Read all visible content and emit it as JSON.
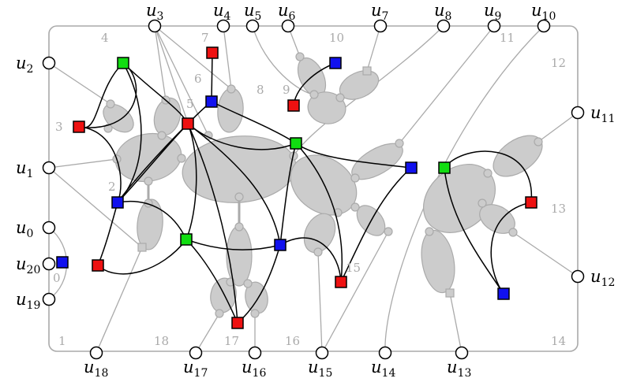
{
  "colors": {
    "frame": "#aaaaaa",
    "blob_fill": "#cccccc",
    "blob_stroke": "#aaaaaa",
    "thin_edge": "#aaaaaa",
    "curve": "#000000",
    "region_label": "#aaaaaa",
    "red": "#ee1111",
    "green": "#11dd11",
    "blue": "#1111ee",
    "gray_node": "#cccccc"
  },
  "outer_vertices": [
    {
      "name": "u_0",
      "base": "u",
      "sub": "0"
    },
    {
      "name": "u_1",
      "base": "u",
      "sub": "1"
    },
    {
      "name": "u_2",
      "base": "u",
      "sub": "2"
    },
    {
      "name": "u_3",
      "base": "u",
      "sub": "3"
    },
    {
      "name": "u_4",
      "base": "u",
      "sub": "4"
    },
    {
      "name": "u_5",
      "base": "u",
      "sub": "5"
    },
    {
      "name": "u_6",
      "base": "u",
      "sub": "6"
    },
    {
      "name": "u_7",
      "base": "u",
      "sub": "7"
    },
    {
      "name": "u_8",
      "base": "u",
      "sub": "8"
    },
    {
      "name": "u_9",
      "base": "u",
      "sub": "9"
    },
    {
      "name": "u_10",
      "base": "u",
      "sub": "10"
    },
    {
      "name": "u_11",
      "base": "u",
      "sub": "11"
    },
    {
      "name": "u_12",
      "base": "u",
      "sub": "12"
    },
    {
      "name": "u_13",
      "base": "u",
      "sub": "13"
    },
    {
      "name": "u_14",
      "base": "u",
      "sub": "14"
    },
    {
      "name": "u_15",
      "base": "u",
      "sub": "15"
    },
    {
      "name": "u_16",
      "base": "u",
      "sub": "16"
    },
    {
      "name": "u_17",
      "base": "u",
      "sub": "17"
    },
    {
      "name": "u_18",
      "base": "u",
      "sub": "18"
    },
    {
      "name": "u_19",
      "base": "u",
      "sub": "19"
    },
    {
      "name": "u_20",
      "base": "u",
      "sub": "20"
    }
  ],
  "region_labels": [
    "0",
    "1",
    "2",
    "3",
    "4",
    "5",
    "6",
    "7",
    "8",
    "9",
    "10",
    "11",
    "12",
    "13",
    "14",
    "15",
    "16",
    "17",
    "18"
  ]
}
